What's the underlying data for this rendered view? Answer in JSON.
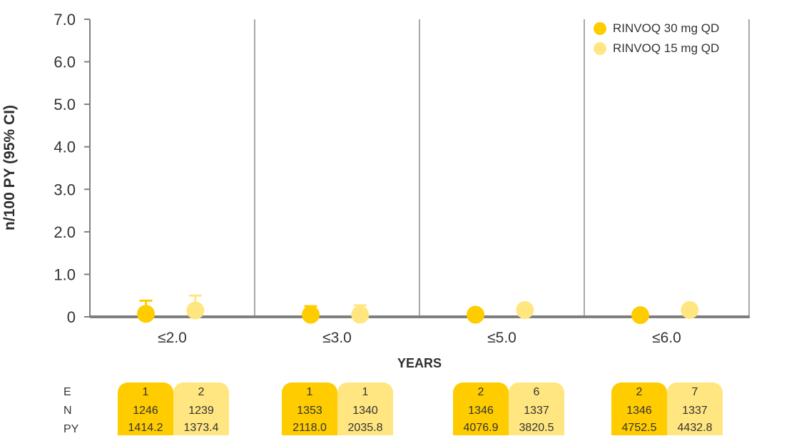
{
  "colors": {
    "rinvoq30": "#FFCC00",
    "rinvoq15": "#FFE680",
    "axis": "#7f7f7f",
    "divider": "#8c8c8c"
  },
  "ylabel": "n/100 PY (95% CI)",
  "legend": [
    {
      "label": "RINVOQ 30 mg QD",
      "color": "#FFCC00"
    },
    {
      "label": "RINVOQ 15 mg QD",
      "color": "#FFE680"
    }
  ],
  "table": {
    "row_labels": [
      "E",
      "N",
      "PY"
    ],
    "groups": [
      {
        "rinvoq30": [
          "1",
          "1246",
          "1414.2"
        ],
        "rinvoq15": [
          "2",
          "1239",
          "1373.4"
        ]
      },
      {
        "rinvoq30": [
          "1",
          "1353",
          "2118.0"
        ],
        "rinvoq15": [
          "1",
          "1340",
          "2035.8"
        ]
      },
      {
        "rinvoq30": [
          "2",
          "1346",
          "4076.9"
        ],
        "rinvoq15": [
          "6",
          "1337",
          "3820.5"
        ]
      },
      {
        "rinvoq30": [
          "2",
          "1346",
          "4752.5"
        ],
        "rinvoq15": [
          "7",
          "1337",
          "4432.8"
        ]
      }
    ]
  },
  "chart_data": {
    "type": "scatter",
    "title": "",
    "xlabel": "YEARS",
    "ylabel": "n/100 PY (95% CI)",
    "categories": [
      "≤2.0",
      "≤3.0",
      "≤5.0",
      "≤6.0"
    ],
    "ylim": [
      0,
      7
    ],
    "yticks": [
      "0",
      "1.0",
      "2.0",
      "3.0",
      "4.0",
      "5.0",
      "6.0",
      "7.0"
    ],
    "grid": false,
    "legend_position": "top-right",
    "series": [
      {
        "name": "RINVOQ 30 mg QD",
        "color": "#FFCC00",
        "values": [
          0.07,
          0.05,
          0.05,
          0.04
        ],
        "ci_upper": [
          0.38,
          0.25,
          null,
          null
        ]
      },
      {
        "name": "RINVOQ 15 mg QD",
        "color": "#FFE680",
        "values": [
          0.15,
          0.05,
          0.16,
          0.16
        ],
        "ci_upper": [
          0.5,
          0.27,
          null,
          null
        ]
      }
    ]
  }
}
